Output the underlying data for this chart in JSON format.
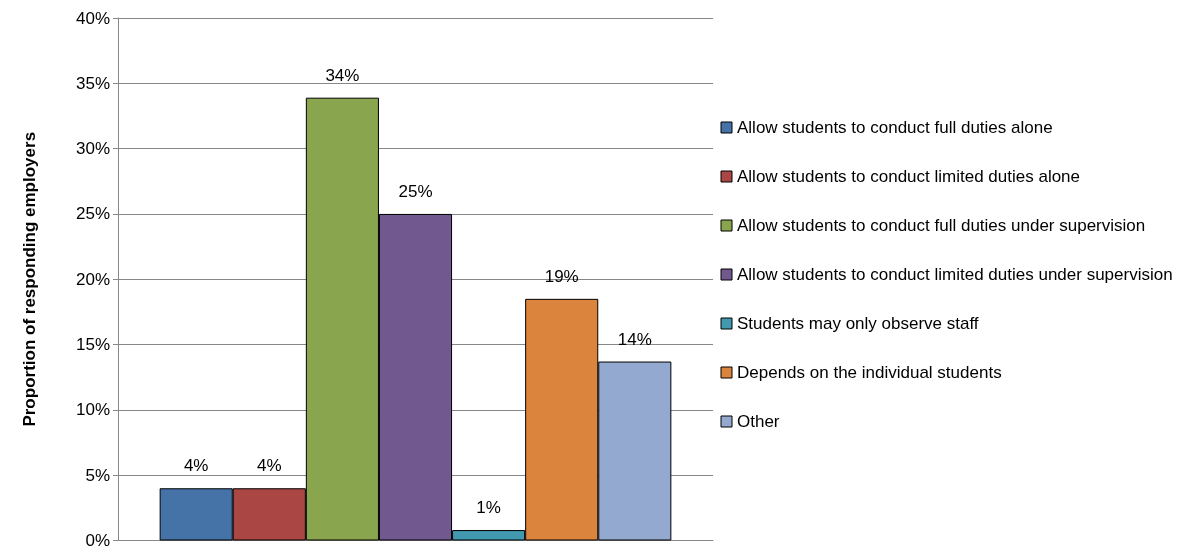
{
  "chart_data": {
    "type": "bar",
    "ylabel": "Proportion of responding employers",
    "categories": [
      null
    ],
    "series": [
      {
        "name": "Allow students to conduct full duties alone",
        "color": "#4572a7",
        "values": [
          4.0
        ],
        "value_labels": [
          "4%"
        ]
      },
      {
        "name": "Allow students to conduct limited duties alone",
        "color": "#aa4643",
        "values": [
          4.0
        ],
        "value_labels": [
          "4%"
        ]
      },
      {
        "name": "Allow students to conduct full duties under supervision",
        "color": "#89a54e",
        "values": [
          33.9
        ],
        "value_labels": [
          "34%"
        ]
      },
      {
        "name": "Allow students to conduct limited duties under supervision",
        "color": "#71588f",
        "values": [
          25.0
        ],
        "value_labels": [
          "25%"
        ]
      },
      {
        "name": "Students may only observe staff",
        "color": "#4198af",
        "values": [
          0.8
        ],
        "value_labels": [
          "1%"
        ]
      },
      {
        "name": "Depends on the individual students",
        "color": "#db843d",
        "values": [
          18.5
        ],
        "value_labels": [
          "19%"
        ]
      },
      {
        "name": "Other",
        "color": "#93a9cf",
        "values": [
          13.7
        ],
        "value_labels": [
          "14%"
        ]
      }
    ],
    "ylim": [
      0,
      40
    ],
    "yticks": [
      {
        "value": 0,
        "label": "0%"
      },
      {
        "value": 5,
        "label": "5%"
      },
      {
        "value": 10,
        "label": "10%"
      },
      {
        "value": 15,
        "label": "15%"
      },
      {
        "value": 20,
        "label": "20%"
      },
      {
        "value": 25,
        "label": "25%"
      },
      {
        "value": 30,
        "label": "30%"
      },
      {
        "value": 35,
        "label": "35%"
      },
      {
        "value": 40,
        "label": "40%"
      }
    ],
    "grid": "y",
    "legend": "right"
  }
}
